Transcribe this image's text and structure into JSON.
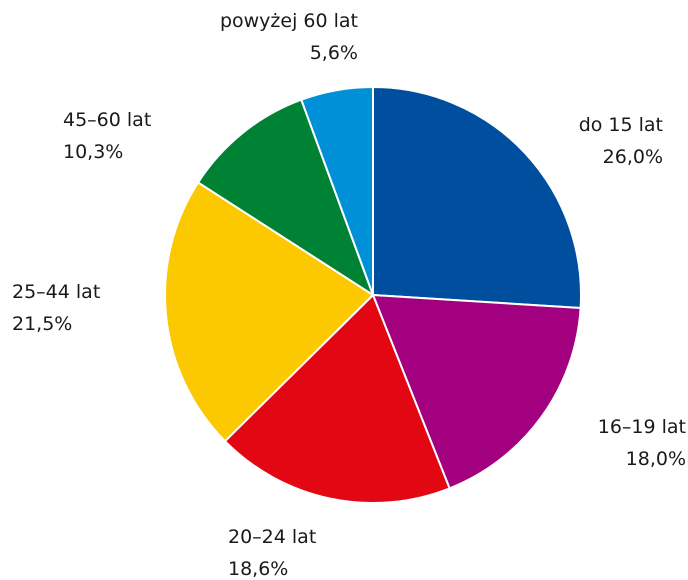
{
  "chart_data": {
    "type": "pie",
    "title": "",
    "start_angle_deg": 0,
    "direction": "clockwise",
    "legend": "none",
    "slices": [
      {
        "label": "do 15 lat",
        "value": 26.0,
        "value_label": "26,0%",
        "color": "#004f9f"
      },
      {
        "label": "16–19 lat",
        "value": 18.0,
        "value_label": "18,0%",
        "color": "#a2007f"
      },
      {
        "label": "20–24 lat",
        "value": 18.6,
        "value_label": "18,6%",
        "color": "#e30613"
      },
      {
        "label": "25–44 lat",
        "value": 21.5,
        "value_label": "21,5%",
        "color": "#fcc800"
      },
      {
        "label": "45–60 lat",
        "value": 10.3,
        "value_label": "10,3%",
        "color": "#008234"
      },
      {
        "label": "powyżej 60 lat",
        "value": 5.6,
        "value_label": "5,6%",
        "color": "#0090d7"
      }
    ]
  }
}
